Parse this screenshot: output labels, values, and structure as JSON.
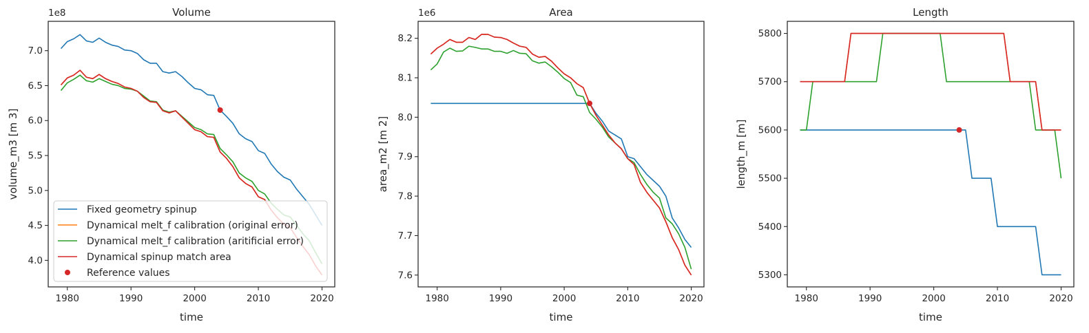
{
  "chart_data": [
    {
      "type": "line",
      "title": "Volume",
      "xlabel": "time",
      "ylabel": "volume_m3 [m 3]",
      "offset_text": "1e8",
      "xlim": [
        1977,
        2022
      ],
      "ylim": [
        3.62,
        7.42
      ],
      "xticks": [
        1980,
        1990,
        2000,
        2010,
        2020
      ],
      "xtick_labels": [
        "1980",
        "1990",
        "2000",
        "2010",
        "2020"
      ],
      "yticks": [
        4.0,
        4.5,
        5.0,
        5.5,
        6.0,
        6.5,
        7.0
      ],
      "ytick_labels": [
        "4.0",
        "4.5",
        "5.0",
        "5.5",
        "6.0",
        "6.5",
        "7.0"
      ],
      "legend_position": "lower-left",
      "x": [
        1979,
        1980,
        1981,
        1982,
        1983,
        1984,
        1985,
        1986,
        1987,
        1988,
        1989,
        1990,
        1991,
        1992,
        1993,
        1994,
        1995,
        1996,
        1997,
        1998,
        1999,
        2000,
        2001,
        2002,
        2003,
        2004,
        2005,
        2006,
        2007,
        2008,
        2009,
        2010,
        2011,
        2012,
        2013,
        2014,
        2015,
        2016,
        2017,
        2018,
        2019,
        2020
      ],
      "series": [
        {
          "name": "Fixed geometry spinup",
          "color": "#1f77b4",
          "values": [
            7.03,
            7.13,
            7.17,
            7.23,
            7.14,
            7.12,
            7.18,
            7.12,
            7.08,
            7.06,
            7.01,
            7.0,
            6.96,
            6.87,
            6.82,
            6.82,
            6.7,
            6.68,
            6.7,
            6.63,
            6.54,
            6.46,
            6.44,
            6.37,
            6.36,
            6.15,
            6.06,
            5.96,
            5.81,
            5.74,
            5.7,
            5.57,
            5.53,
            5.38,
            5.27,
            5.19,
            5.15,
            5.02,
            4.91,
            4.8,
            4.65,
            4.5
          ]
        },
        {
          "name": "Dynamical melt_f calibration (original error)",
          "color": "#ff7f0e",
          "values": [
            6.51,
            6.61,
            6.65,
            6.72,
            6.62,
            6.6,
            6.66,
            6.6,
            6.56,
            6.53,
            6.48,
            6.46,
            6.42,
            6.33,
            6.27,
            6.26,
            6.14,
            6.11,
            6.14,
            6.05,
            5.96,
            5.87,
            5.84,
            5.77,
            5.76,
            5.55,
            5.46,
            5.34,
            5.18,
            5.1,
            5.05,
            4.91,
            4.87,
            4.72,
            4.61,
            4.52,
            4.47,
            4.33,
            4.2,
            4.08,
            3.92,
            3.79
          ]
        },
        {
          "name": "Dynamical melt_f calibration (aritificial error)",
          "color": "#2ca02c",
          "values": [
            6.43,
            6.54,
            6.59,
            6.65,
            6.57,
            6.55,
            6.6,
            6.56,
            6.52,
            6.5,
            6.46,
            6.45,
            6.42,
            6.35,
            6.28,
            6.27,
            6.15,
            6.12,
            6.14,
            6.06,
            5.98,
            5.9,
            5.87,
            5.81,
            5.8,
            5.6,
            5.51,
            5.41,
            5.25,
            5.18,
            5.13,
            5.0,
            4.95,
            4.82,
            4.73,
            4.65,
            4.62,
            4.5,
            4.38,
            4.28,
            4.11,
            3.95
          ]
        },
        {
          "name": "Dynamical spinup match area",
          "color": "#d62728",
          "values": [
            6.51,
            6.61,
            6.65,
            6.72,
            6.62,
            6.6,
            6.66,
            6.6,
            6.56,
            6.53,
            6.48,
            6.46,
            6.42,
            6.33,
            6.27,
            6.26,
            6.14,
            6.11,
            6.14,
            6.05,
            5.96,
            5.87,
            5.84,
            5.77,
            5.76,
            5.55,
            5.46,
            5.34,
            5.18,
            5.1,
            5.05,
            4.91,
            4.87,
            4.72,
            4.61,
            4.52,
            4.47,
            4.33,
            4.2,
            4.08,
            3.92,
            3.79
          ]
        }
      ],
      "reference": {
        "name": "Reference values",
        "color": "#d62728",
        "x": 2004,
        "y": 6.15
      }
    },
    {
      "type": "line",
      "title": "Area",
      "xlabel": "time",
      "ylabel": "area_m2 [m 2]",
      "offset_text": "1e6",
      "xlim": [
        1977,
        2022
      ],
      "ylim": [
        7.57,
        8.243
      ],
      "xticks": [
        1980,
        1990,
        2000,
        2010,
        2020
      ],
      "xtick_labels": [
        "1980",
        "1990",
        "2000",
        "2010",
        "2020"
      ],
      "yticks": [
        7.6,
        7.7,
        7.8,
        7.9,
        8.0,
        8.1,
        8.2
      ],
      "ytick_labels": [
        "7.6",
        "7.7",
        "7.8",
        "7.9",
        "8.0",
        "8.1",
        "8.2"
      ],
      "x": [
        1979,
        1980,
        1981,
        1982,
        1983,
        1984,
        1985,
        1986,
        1987,
        1988,
        1989,
        1990,
        1991,
        1992,
        1993,
        1994,
        1995,
        1996,
        1997,
        1998,
        1999,
        2000,
        2001,
        2002,
        2003,
        2004,
        2005,
        2006,
        2007,
        2008,
        2009,
        2010,
        2011,
        2012,
        2013,
        2014,
        2015,
        2016,
        2017,
        2018,
        2019,
        2020
      ],
      "series": [
        {
          "name": "Fixed geometry spinup",
          "color": "#1f77b4",
          "values": [
            8.035,
            8.035,
            8.035,
            8.035,
            8.035,
            8.035,
            8.035,
            8.035,
            8.035,
            8.035,
            8.035,
            8.035,
            8.035,
            8.035,
            8.035,
            8.035,
            8.035,
            8.035,
            8.035,
            8.035,
            8.035,
            8.035,
            8.035,
            8.035,
            8.035,
            8.035,
            8.01,
            7.99,
            7.965,
            7.955,
            7.945,
            7.9,
            7.895,
            7.875,
            7.855,
            7.84,
            7.825,
            7.8,
            7.745,
            7.72,
            7.69,
            7.67
          ]
        },
        {
          "name": "Dynamical melt_f calibration (original error)",
          "color": "#ff7f0e",
          "values": [
            8.16,
            8.175,
            8.185,
            8.197,
            8.19,
            8.19,
            8.202,
            8.197,
            8.21,
            8.21,
            8.203,
            8.202,
            8.197,
            8.188,
            8.18,
            8.177,
            8.16,
            8.152,
            8.154,
            8.142,
            8.125,
            8.11,
            8.1,
            8.085,
            8.075,
            8.035,
            8.005,
            7.98,
            7.955,
            7.935,
            7.92,
            7.895,
            7.88,
            7.835,
            7.81,
            7.79,
            7.77,
            7.735,
            7.695,
            7.665,
            7.625,
            7.6
          ]
        },
        {
          "name": "Dynamical melt_f calibration (aritificial error)",
          "color": "#2ca02c",
          "values": [
            8.12,
            8.135,
            8.165,
            8.175,
            8.167,
            8.168,
            8.18,
            8.177,
            8.173,
            8.173,
            8.167,
            8.167,
            8.162,
            8.169,
            8.162,
            8.161,
            8.143,
            8.137,
            8.14,
            8.128,
            8.114,
            8.098,
            8.088,
            8.056,
            8.052,
            8.012,
            7.995,
            7.975,
            7.95,
            7.935,
            7.92,
            7.895,
            7.885,
            7.855,
            7.83,
            7.81,
            7.795,
            7.745,
            7.73,
            7.705,
            7.67,
            7.615
          ]
        },
        {
          "name": "Dynamical spinup match area",
          "color": "#d62728",
          "values": [
            8.16,
            8.175,
            8.185,
            8.197,
            8.19,
            8.19,
            8.202,
            8.197,
            8.21,
            8.21,
            8.203,
            8.202,
            8.197,
            8.188,
            8.18,
            8.177,
            8.16,
            8.152,
            8.154,
            8.142,
            8.125,
            8.11,
            8.1,
            8.085,
            8.075,
            8.035,
            8.005,
            7.98,
            7.955,
            7.935,
            7.92,
            7.895,
            7.88,
            7.835,
            7.81,
            7.79,
            7.77,
            7.735,
            7.695,
            7.665,
            7.625,
            7.6
          ]
        }
      ],
      "reference": {
        "name": "Reference values",
        "color": "#d62728",
        "x": 2004,
        "y": 8.035
      }
    },
    {
      "type": "line",
      "title": "Length",
      "xlabel": "time",
      "ylabel": "length_m [m]",
      "offset_text": "",
      "xlim": [
        1977,
        2022
      ],
      "ylim": [
        5275,
        5825
      ],
      "xticks": [
        1980,
        1990,
        2000,
        2010,
        2020
      ],
      "xtick_labels": [
        "1980",
        "1990",
        "2000",
        "2010",
        "2020"
      ],
      "yticks": [
        5300,
        5400,
        5500,
        5600,
        5700,
        5800
      ],
      "ytick_labels": [
        "5300",
        "5400",
        "5500",
        "5600",
        "5700",
        "5800"
      ],
      "x": [
        1979,
        1980,
        1981,
        1982,
        1983,
        1984,
        1985,
        1986,
        1987,
        1988,
        1989,
        1990,
        1991,
        1992,
        1993,
        1994,
        1995,
        1996,
        1997,
        1998,
        1999,
        2000,
        2001,
        2002,
        2003,
        2004,
        2005,
        2006,
        2007,
        2008,
        2009,
        2010,
        2011,
        2012,
        2013,
        2014,
        2015,
        2016,
        2017,
        2018,
        2019,
        2020
      ],
      "series": [
        {
          "name": "Fixed geometry spinup",
          "color": "#1f77b4",
          "values": [
            5600,
            5600,
            5600,
            5600,
            5600,
            5600,
            5600,
            5600,
            5600,
            5600,
            5600,
            5600,
            5600,
            5600,
            5600,
            5600,
            5600,
            5600,
            5600,
            5600,
            5600,
            5600,
            5600,
            5600,
            5600,
            5600,
            5600,
            5500,
            5500,
            5500,
            5500,
            5400,
            5400,
            5400,
            5400,
            5400,
            5400,
            5400,
            5300,
            5300,
            5300,
            5300
          ]
        },
        {
          "name": "Dynamical melt_f calibration (original error)",
          "color": "#ff7f0e",
          "values": [
            5700,
            5700,
            5700,
            5700,
            5700,
            5700,
            5700,
            5700,
            5800,
            5800,
            5800,
            5800,
            5800,
            5800,
            5800,
            5800,
            5800,
            5800,
            5800,
            5800,
            5800,
            5800,
            5800,
            5800,
            5800,
            5800,
            5800,
            5800,
            5800,
            5800,
            5800,
            5800,
            5800,
            5700,
            5700,
            5700,
            5700,
            5700,
            5600,
            5600,
            5600,
            5600
          ]
        },
        {
          "name": "Dynamical melt_f calibration (aritificial error)",
          "color": "#2ca02c",
          "values": [
            5600,
            5600,
            5700,
            5700,
            5700,
            5700,
            5700,
            5700,
            5700,
            5700,
            5700,
            5700,
            5700,
            5800,
            5800,
            5800,
            5800,
            5800,
            5800,
            5800,
            5800,
            5800,
            5800,
            5700,
            5700,
            5700,
            5700,
            5700,
            5700,
            5700,
            5700,
            5700,
            5700,
            5700,
            5700,
            5700,
            5700,
            5600,
            5600,
            5600,
            5600,
            5500
          ]
        },
        {
          "name": "Dynamical spinup match area",
          "color": "#d62728",
          "values": [
            5700,
            5700,
            5700,
            5700,
            5700,
            5700,
            5700,
            5700,
            5800,
            5800,
            5800,
            5800,
            5800,
            5800,
            5800,
            5800,
            5800,
            5800,
            5800,
            5800,
            5800,
            5800,
            5800,
            5800,
            5800,
            5800,
            5800,
            5800,
            5800,
            5800,
            5800,
            5800,
            5800,
            5700,
            5700,
            5700,
            5700,
            5700,
            5600,
            5600,
            5600,
            5600
          ]
        }
      ],
      "reference": {
        "name": "Reference values",
        "color": "#d62728",
        "x": 2004,
        "y": 5600
      }
    }
  ]
}
